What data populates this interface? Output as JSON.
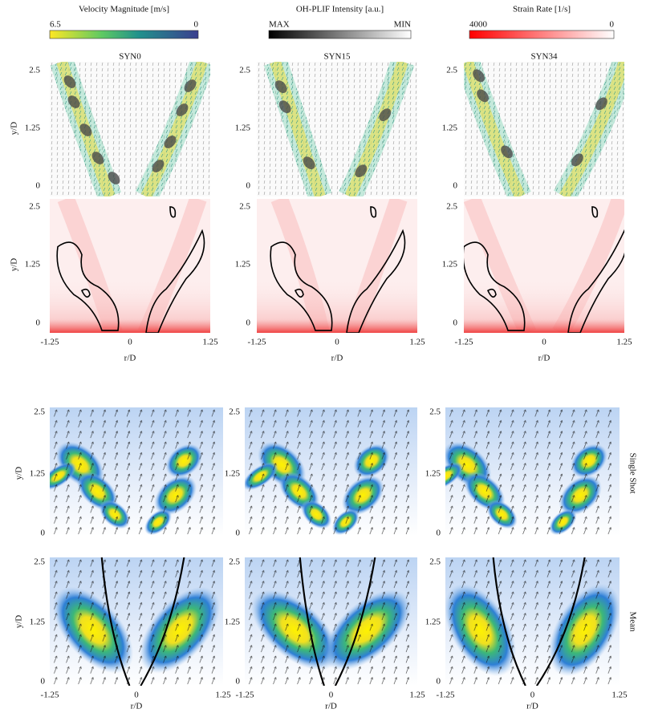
{
  "colorbars": [
    {
      "label": "Velocity Magnitude [m/s]",
      "left": "6.5",
      "right": "0"
    },
    {
      "label": "OH-PLIF Intensity [a.u.]",
      "left": "MAX",
      "right": "MIN"
    },
    {
      "label": "Strain Rate [1/s]",
      "left": "4000",
      "right": "0"
    }
  ],
  "top": {
    "titles": [
      "SYN0",
      "SYN15",
      "SYN34"
    ],
    "y_label": "y/D",
    "x_label": "r/D",
    "y_ticks": [
      "2.5",
      "1.25",
      "0"
    ],
    "x_ticks": [
      "-1.25",
      "0",
      "1.25"
    ]
  },
  "bottom": {
    "row_labels": [
      "Single Shot",
      "Mean"
    ],
    "y_label": "y/D",
    "x_label": "r/D",
    "y_ticks": [
      "2.5",
      "1.25",
      "0"
    ],
    "x_ticks": [
      "-1.25",
      "0",
      "1.25"
    ]
  }
}
